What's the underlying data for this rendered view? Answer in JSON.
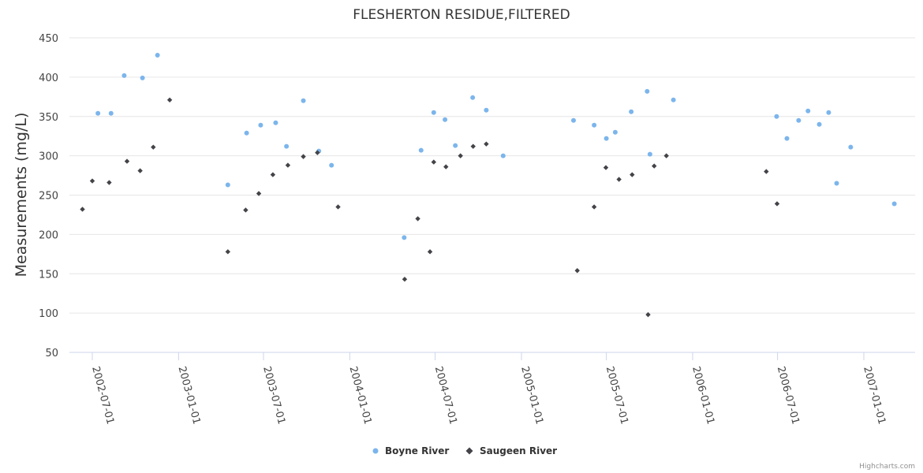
{
  "chart_data": {
    "type": "scatter",
    "title": "FLESHERTON RESIDUE,FILTERED",
    "xlabel": "",
    "ylabel": "Measurements (mg/L)",
    "ylim": [
      50,
      450
    ],
    "yticks": [
      "450",
      "400",
      "350",
      "300",
      "250",
      "200",
      "150",
      "100",
      "50"
    ],
    "xticks": [
      "2002-07-01",
      "2003-01-01",
      "2003-07-01",
      "2004-01-01",
      "2004-07-01",
      "2005-01-01",
      "2005-07-01",
      "2006-01-01",
      "2006-07-01",
      "2007-01-01"
    ],
    "grid": true,
    "legend": "bottom-center",
    "series": [
      {
        "name": "Boyne River",
        "color": "#7cb5ec",
        "marker": "circle",
        "points": [
          {
            "x": "2002-07-13",
            "y": 354
          },
          {
            "x": "2002-08-10",
            "y": 354
          },
          {
            "x": "2002-09-07",
            "y": 402
          },
          {
            "x": "2002-10-16",
            "y": 399
          },
          {
            "x": "2002-11-17",
            "y": 428
          },
          {
            "x": "2003-04-16",
            "y": 263
          },
          {
            "x": "2003-05-26",
            "y": 329
          },
          {
            "x": "2003-06-25",
            "y": 339
          },
          {
            "x": "2003-07-27",
            "y": 342
          },
          {
            "x": "2003-08-19",
            "y": 312
          },
          {
            "x": "2003-09-24",
            "y": 370
          },
          {
            "x": "2003-10-27",
            "y": 306
          },
          {
            "x": "2003-11-23",
            "y": 288
          },
          {
            "x": "2004-04-26",
            "y": 196
          },
          {
            "x": "2004-06-01",
            "y": 307
          },
          {
            "x": "2004-06-28",
            "y": 355
          },
          {
            "x": "2004-07-22",
            "y": 346
          },
          {
            "x": "2004-08-13",
            "y": 313
          },
          {
            "x": "2004-09-19",
            "y": 374
          },
          {
            "x": "2004-10-18",
            "y": 358
          },
          {
            "x": "2004-11-23",
            "y": 300
          },
          {
            "x": "2005-04-22",
            "y": 345
          },
          {
            "x": "2005-06-05",
            "y": 339
          },
          {
            "x": "2005-07-01",
            "y": 322
          },
          {
            "x": "2005-07-20",
            "y": 330
          },
          {
            "x": "2005-08-23",
            "y": 356
          },
          {
            "x": "2005-09-26",
            "y": 382
          },
          {
            "x": "2005-10-02",
            "y": 302
          },
          {
            "x": "2005-11-21",
            "y": 371
          },
          {
            "x": "2006-06-29",
            "y": 350
          },
          {
            "x": "2006-07-21",
            "y": 322
          },
          {
            "x": "2006-08-15",
            "y": 345
          },
          {
            "x": "2006-09-04",
            "y": 357
          },
          {
            "x": "2006-09-28",
            "y": 340
          },
          {
            "x": "2006-10-18",
            "y": 355
          },
          {
            "x": "2006-11-04",
            "y": 265
          },
          {
            "x": "2006-12-04",
            "y": 311
          },
          {
            "x": "2007-03-07",
            "y": 239
          }
        ]
      },
      {
        "name": "Saugeen River",
        "color": "#434348",
        "marker": "diamond",
        "points": [
          {
            "x": "2002-06-10",
            "y": 232
          },
          {
            "x": "2002-07-01",
            "y": 268
          },
          {
            "x": "2002-08-06",
            "y": 266
          },
          {
            "x": "2002-09-13",
            "y": 293
          },
          {
            "x": "2002-10-11",
            "y": 281
          },
          {
            "x": "2002-11-08",
            "y": 311
          },
          {
            "x": "2002-12-13",
            "y": 371
          },
          {
            "x": "2003-04-16",
            "y": 178
          },
          {
            "x": "2003-05-24",
            "y": 231
          },
          {
            "x": "2003-06-21",
            "y": 252
          },
          {
            "x": "2003-07-21",
            "y": 276
          },
          {
            "x": "2003-08-22",
            "y": 288
          },
          {
            "x": "2003-09-24",
            "y": 299
          },
          {
            "x": "2003-10-24",
            "y": 304
          },
          {
            "x": "2003-12-07",
            "y": 235
          },
          {
            "x": "2004-04-27",
            "y": 143
          },
          {
            "x": "2004-05-25",
            "y": 220
          },
          {
            "x": "2004-06-20",
            "y": 178
          },
          {
            "x": "2004-06-28",
            "y": 292
          },
          {
            "x": "2004-07-24",
            "y": 286
          },
          {
            "x": "2004-08-24",
            "y": 300
          },
          {
            "x": "2004-09-20",
            "y": 312
          },
          {
            "x": "2004-10-18",
            "y": 315
          },
          {
            "x": "2005-04-30",
            "y": 154
          },
          {
            "x": "2005-06-05",
            "y": 235
          },
          {
            "x": "2005-06-30",
            "y": 285
          },
          {
            "x": "2005-07-28",
            "y": 270
          },
          {
            "x": "2005-08-25",
            "y": 276
          },
          {
            "x": "2005-09-28",
            "y": 98
          },
          {
            "x": "2005-10-11",
            "y": 287
          },
          {
            "x": "2005-11-06",
            "y": 300
          },
          {
            "x": "2006-06-07",
            "y": 280
          },
          {
            "x": "2006-06-30",
            "y": 239
          }
        ]
      }
    ]
  },
  "credits": "Highcharts.com"
}
